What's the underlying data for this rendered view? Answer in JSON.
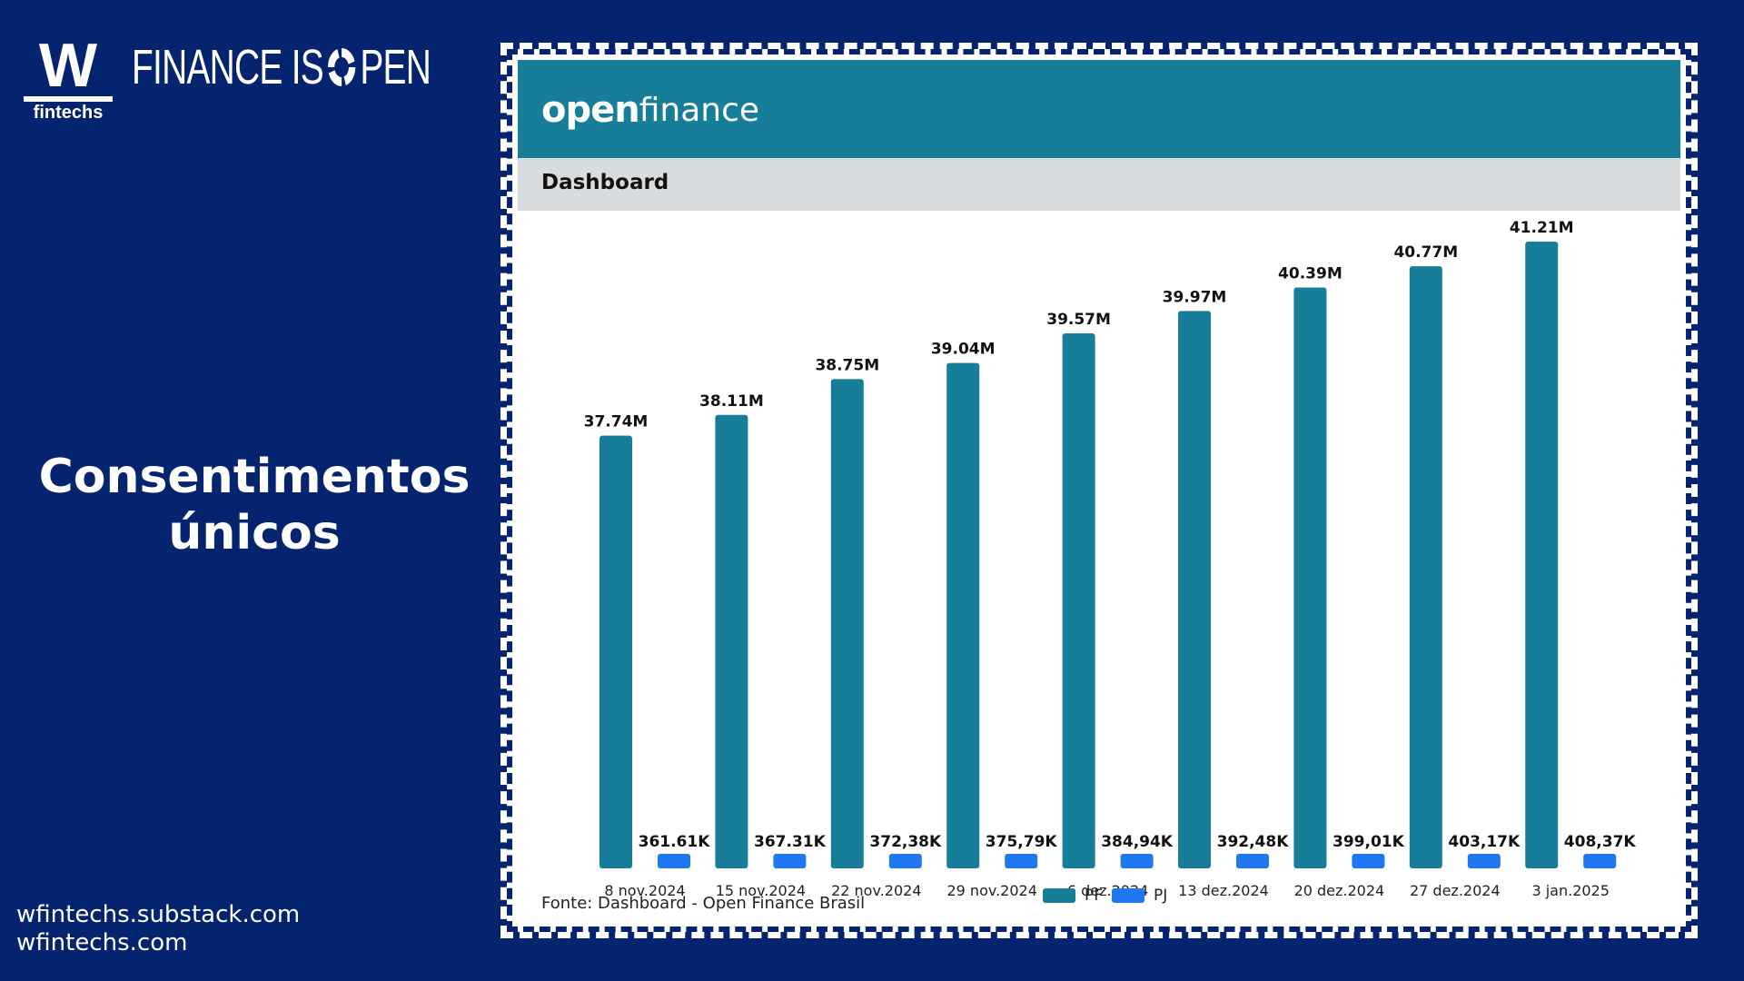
{
  "brand": {
    "logo_letter": "W",
    "logo_sub": "fintechs",
    "tagline_part1": "FINANCE IS",
    "tagline_part2": "PEN"
  },
  "side_title": {
    "line1": "Consentimentos",
    "line2": "únicos"
  },
  "links": [
    "wfintechs.substack.com",
    "wfintechs.com"
  ],
  "dashboard": {
    "logo_open": "open",
    "logo_finance": "finance",
    "header_color": "#167e98",
    "section_title": "Dashboard",
    "source": "Fonte: Dashboard - Open Finance Brasil"
  },
  "chart_data": {
    "type": "bar",
    "categories": [
      "8 nov.2024",
      "15 nov.2024",
      "22 nov.2024",
      "29 nov.2024",
      "6 dez.2024",
      "13 dez.2024",
      "20 dez.2024",
      "27 dez.2024",
      "3 jan.2025"
    ],
    "series": [
      {
        "name": "PF",
        "color": "#167e98",
        "values": [
          37.74,
          38.11,
          38.75,
          39.04,
          39.57,
          39.97,
          40.39,
          40.77,
          41.21
        ],
        "labels": [
          "37.74M",
          "38.11M",
          "38.75M",
          "39.04M",
          "39.57M",
          "39.97M",
          "40.39M",
          "40.77M",
          "41.21M"
        ]
      },
      {
        "name": "PJ",
        "color": "#1f78f0",
        "values": [
          0.36161,
          0.36731,
          0.37238,
          0.37579,
          0.38494,
          0.39248,
          0.39901,
          0.40317,
          0.40837
        ],
        "labels": [
          "361.61K",
          "367.31K",
          "372,38K",
          "375,79K",
          "384,94K",
          "392,48K",
          "399,01K",
          "403,17K",
          "408,37K"
        ]
      }
    ],
    "unit": "M",
    "title": "",
    "xlabel": "",
    "ylabel": "",
    "legend_position": "bottom",
    "grid": false
  }
}
